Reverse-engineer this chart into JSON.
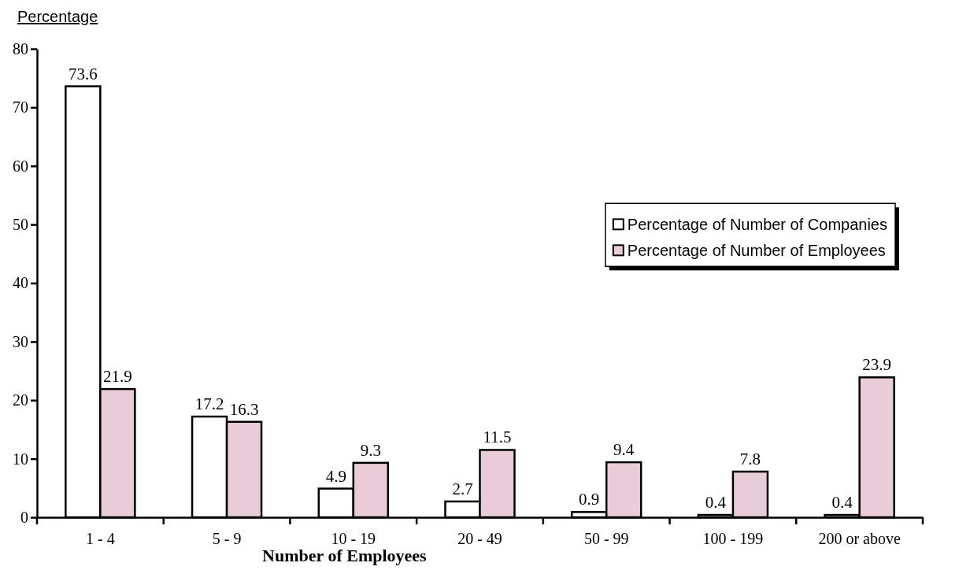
{
  "chart_data": {
    "type": "bar",
    "xlabel": "Number of Employees",
    "ylabel": "Percentage",
    "categories": [
      "1 - 4",
      "5 - 9",
      "10 - 19",
      "20 - 49",
      "50 - 99",
      "100 - 199",
      "200 or above"
    ],
    "series": [
      {
        "name": "Percentage of Number of Companies",
        "color": "#ffffff",
        "values": [
          73.6,
          17.2,
          4.9,
          2.7,
          0.9,
          0.4,
          0.4
        ]
      },
      {
        "name": "Percentage of Number of Employees",
        "color": "#e8ccd8",
        "values": [
          21.9,
          16.3,
          9.3,
          11.5,
          9.4,
          7.8,
          23.9
        ]
      }
    ],
    "ylim": [
      0,
      80
    ],
    "yticks": [
      0,
      10,
      20,
      30,
      40,
      50,
      60,
      70,
      80
    ],
    "data_labels": true,
    "legend": "right"
  }
}
